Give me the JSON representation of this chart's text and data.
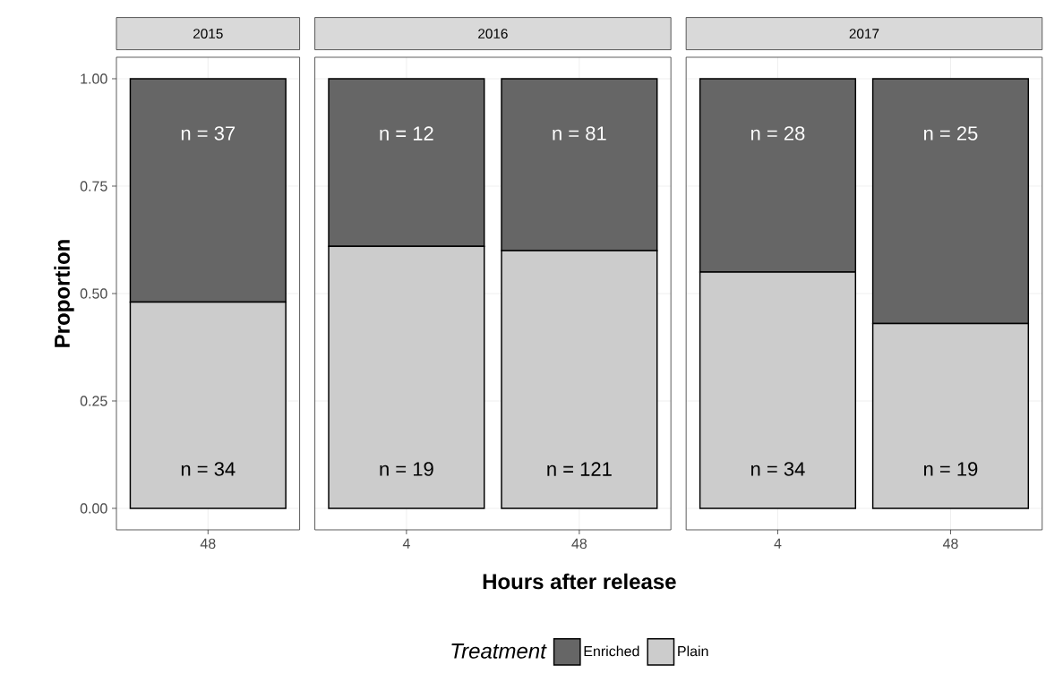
{
  "chart_data": [
    {
      "type": "bar",
      "stacked": true,
      "title": "2015",
      "ylabel": "Proportion",
      "categories": [
        "48"
      ],
      "series": [
        {
          "color": "#cccccc",
          "values": [
            0.48
          ]
        },
        {
          "color": "#666666",
          "values": [
            0.52
          ]
        }
      ],
      "ylim": [
        -0.05,
        1.05
      ],
      "yticks": [
        {
          "value": 0,
          "label": "0.00"
        },
        {
          "value": 0.25,
          "label": "0.25"
        },
        {
          "value": 0.5,
          "label": "0.50"
        },
        {
          "value": 0.75,
          "label": "0.75"
        },
        {
          "value": 1,
          "label": "1.00"
        }
      ],
      "grid": true,
      "annotations": [
        "n = 37",
        "n = 34"
      ]
    },
    {
      "type": "bar",
      "stacked": true,
      "title": "2016",
      "xlabel": "Hours after release",
      "legend": "bottom",
      "legend_title": "Treatment",
      "categories": [
        "4",
        "48"
      ],
      "series": [
        {
          "name": "Plain",
          "color": "#cccccc",
          "values": [
            0.61,
            0.6
          ]
        },
        {
          "name": "Enriched",
          "color": "#666666",
          "values": [
            0.39,
            0.4
          ]
        }
      ],
      "ylim": [
        -0.05,
        1.05
      ],
      "yticks": [
        {
          "value": 0,
          "label": null
        },
        {
          "value": 0.25,
          "label": null
        },
        {
          "value": 0.5,
          "label": null
        },
        {
          "value": 0.75,
          "label": null
        },
        {
          "value": 1,
          "label": null
        }
      ],
      "tick_labels": "x",
      "grid": true,
      "annotations": [
        "n = 12",
        "n = 81",
        "n = 19",
        "n = 121"
      ]
    },
    {
      "type": "bar",
      "stacked": true,
      "title": "2017",
      "categories": [
        "4",
        "48"
      ],
      "series": [
        {
          "color": "#cccccc",
          "values": [
            0.55,
            0.43
          ]
        },
        {
          "color": "#666666",
          "values": [
            0.45,
            0.57
          ]
        }
      ],
      "ylim": [
        -0.05,
        1.05
      ],
      "yticks": [
        {
          "value": 0,
          "label": null
        },
        {
          "value": 0.25,
          "label": null
        },
        {
          "value": 0.5,
          "label": null
        },
        {
          "value": 0.75,
          "label": null
        },
        {
          "value": 1,
          "label": null
        }
      ],
      "tick_labels": "x",
      "grid": true,
      "annotations": [
        "n = 28",
        "n = 25",
        "n = 34",
        "n = 19"
      ]
    }
  ]
}
